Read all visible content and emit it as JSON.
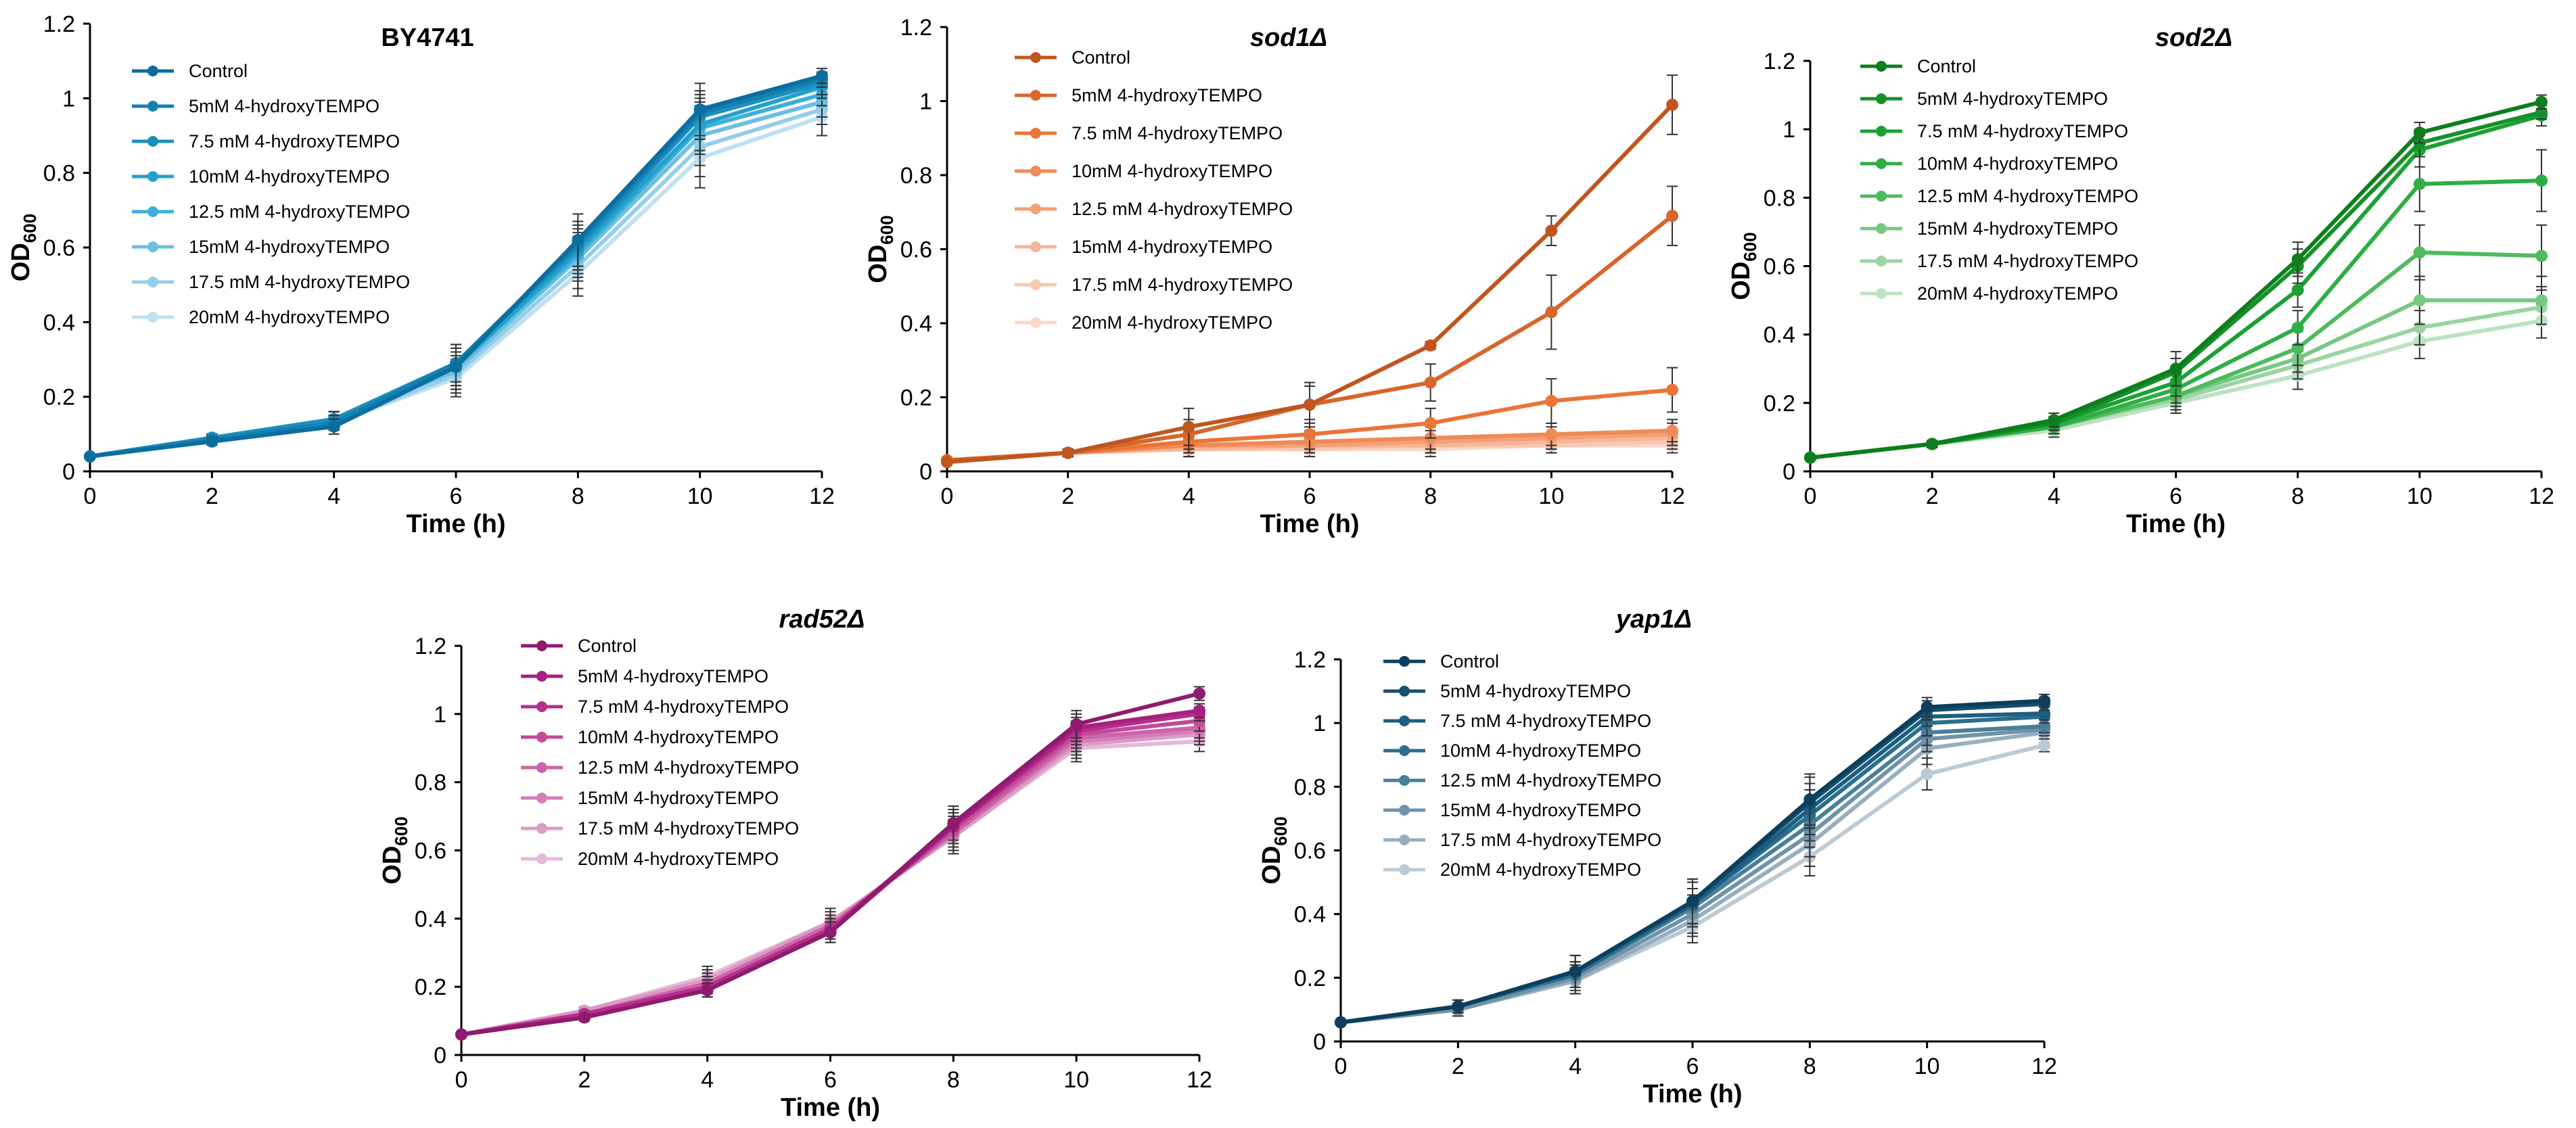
{
  "chart_data": [
    {
      "type": "line",
      "title": "BY4741",
      "title_italic": false,
      "xlabel": "Time (h)",
      "ylabel": "OD",
      "ylabel_sub": "600",
      "x": [
        0,
        2,
        4,
        6,
        8,
        10,
        12
      ],
      "xlim": [
        0,
        12
      ],
      "ylim": [
        0,
        1.2
      ],
      "yticks": [
        "0",
        "0.2",
        "0.4",
        "0.6",
        "0.8",
        "1",
        "1.2"
      ],
      "xticks": [
        "0",
        "2",
        "4",
        "6",
        "8",
        "10",
        "12"
      ],
      "legend_position": "top-left",
      "series": [
        {
          "name": "Control",
          "color": "#0B6E9E",
          "values": [
            0.04,
            0.08,
            0.12,
            0.28,
            0.62,
            0.97,
            1.06
          ],
          "err": [
            0.005,
            0.01,
            0.02,
            0.06,
            0.07,
            0.07,
            0.02
          ]
        },
        {
          "name": "5mM 4-hydroxyTEMPO",
          "color": "#1380B0",
          "values": [
            0.04,
            0.085,
            0.13,
            0.29,
            0.61,
            0.96,
            1.05
          ],
          "err": [
            0.005,
            0.01,
            0.02,
            0.05,
            0.06,
            0.06,
            0.02
          ]
        },
        {
          "name": "7.5 mM 4-hydroxyTEMPO",
          "color": "#1B8FC0",
          "values": [
            0.04,
            0.09,
            0.14,
            0.29,
            0.6,
            0.95,
            1.04
          ],
          "err": [
            0.005,
            0.01,
            0.02,
            0.05,
            0.06,
            0.06,
            0.03
          ]
        },
        {
          "name": "10mM 4-hydroxyTEMPO",
          "color": "#22A0CC",
          "values": [
            0.04,
            0.09,
            0.14,
            0.28,
            0.59,
            0.93,
            1.03
          ],
          "err": [
            0.005,
            0.01,
            0.02,
            0.05,
            0.06,
            0.07,
            0.03
          ]
        },
        {
          "name": "12.5 mM 4-hydroxyTEMPO",
          "color": "#3DB0DA",
          "values": [
            0.04,
            0.09,
            0.14,
            0.28,
            0.58,
            0.92,
            1.01
          ],
          "err": [
            0.005,
            0.01,
            0.02,
            0.05,
            0.06,
            0.07,
            0.03
          ]
        },
        {
          "name": "15mM 4-hydroxyTEMPO",
          "color": "#6BBFE2",
          "values": [
            0.04,
            0.09,
            0.14,
            0.27,
            0.57,
            0.9,
            0.99
          ],
          "err": [
            0.005,
            0.01,
            0.02,
            0.05,
            0.06,
            0.08,
            0.04
          ]
        },
        {
          "name": "17.5 mM 4-hydroxyTEMPO",
          "color": "#94CFEA",
          "values": [
            0.04,
            0.09,
            0.13,
            0.26,
            0.55,
            0.87,
            0.97
          ],
          "err": [
            0.005,
            0.01,
            0.02,
            0.05,
            0.06,
            0.08,
            0.04
          ]
        },
        {
          "name": "20mM 4-hydroxyTEMPO",
          "color": "#BFE0F1",
          "values": [
            0.04,
            0.09,
            0.13,
            0.25,
            0.53,
            0.84,
            0.95
          ],
          "err": [
            0.005,
            0.01,
            0.02,
            0.05,
            0.06,
            0.08,
            0.05
          ]
        }
      ]
    },
    {
      "type": "line",
      "title": "sod1Δ",
      "title_italic": true,
      "xlabel": "Time (h)",
      "ylabel": "OD",
      "ylabel_sub": "600",
      "x": [
        0,
        2,
        4,
        6,
        8,
        10,
        12
      ],
      "xlim": [
        0,
        12
      ],
      "ylim": [
        0,
        1.2
      ],
      "yticks": [
        "0",
        "0.2",
        "0.4",
        "0.6",
        "0.8",
        "1",
        "1.2"
      ],
      "xticks": [
        "0",
        "2",
        "4",
        "6",
        "8",
        "10",
        "12"
      ],
      "legend_position": "top-left",
      "series": [
        {
          "name": "Control",
          "color": "#C0561E",
          "values": [
            0.025,
            0.05,
            0.12,
            0.18,
            0.34,
            0.65,
            0.99
          ],
          "err": [
            0.005,
            0.01,
            0.05,
            0.06,
            0.01,
            0.04,
            0.08
          ]
        },
        {
          "name": "5mM 4-hydroxyTEMPO",
          "color": "#D8652A",
          "values": [
            0.03,
            0.05,
            0.1,
            0.18,
            0.24,
            0.43,
            0.69
          ],
          "err": [
            0.005,
            0.01,
            0.04,
            0.05,
            0.05,
            0.1,
            0.08
          ]
        },
        {
          "name": "7.5 mM 4-hydroxyTEMPO",
          "color": "#EB7436",
          "values": [
            0.03,
            0.05,
            0.08,
            0.1,
            0.13,
            0.19,
            0.22
          ],
          "err": [
            0.005,
            0.01,
            0.03,
            0.04,
            0.04,
            0.06,
            0.06
          ]
        },
        {
          "name": "10mM 4-hydroxyTEMPO",
          "color": "#F08A54",
          "values": [
            0.03,
            0.05,
            0.07,
            0.08,
            0.09,
            0.1,
            0.11
          ],
          "err": [
            0.005,
            0.01,
            0.02,
            0.03,
            0.03,
            0.03,
            0.03
          ]
        },
        {
          "name": "12.5 mM 4-hydroxyTEMPO",
          "color": "#F3A078",
          "values": [
            0.03,
            0.05,
            0.07,
            0.07,
            0.08,
            0.09,
            0.1
          ],
          "err": [
            0.005,
            0.01,
            0.02,
            0.02,
            0.03,
            0.03,
            0.03
          ]
        },
        {
          "name": "15mM 4-hydroxyTEMPO",
          "color": "#F6B698",
          "values": [
            0.03,
            0.05,
            0.06,
            0.07,
            0.07,
            0.08,
            0.09
          ],
          "err": [
            0.005,
            0.01,
            0.02,
            0.02,
            0.02,
            0.02,
            0.02
          ]
        },
        {
          "name": "17.5 mM 4-hydroxyTEMPO",
          "color": "#F8C8B2",
          "values": [
            0.03,
            0.05,
            0.06,
            0.06,
            0.07,
            0.07,
            0.08
          ],
          "err": [
            0.005,
            0.01,
            0.02,
            0.02,
            0.02,
            0.02,
            0.02
          ]
        },
        {
          "name": "20mM 4-hydroxyTEMPO",
          "color": "#FAD8C8",
          "values": [
            0.03,
            0.05,
            0.06,
            0.06,
            0.06,
            0.07,
            0.07
          ],
          "err": [
            0.005,
            0.01,
            0.02,
            0.02,
            0.02,
            0.02,
            0.02
          ]
        }
      ]
    },
    {
      "type": "line",
      "title": "sod2Δ",
      "title_italic": true,
      "xlabel": "Time (h)",
      "ylabel": "OD",
      "ylabel_sub": "600",
      "x": [
        0,
        2,
        4,
        6,
        8,
        10,
        12
      ],
      "xlim": [
        0,
        12
      ],
      "ylim": [
        0,
        1.2
      ],
      "yticks": [
        "0",
        "0.2",
        "0.4",
        "0.6",
        "0.8",
        "1",
        "1.2"
      ],
      "xticks": [
        "0",
        "2",
        "4",
        "6",
        "8",
        "10",
        "12"
      ],
      "legend_position": "top-left",
      "series": [
        {
          "name": "Control",
          "color": "#0E7D1E",
          "values": [
            0.04,
            0.08,
            0.15,
            0.3,
            0.62,
            0.99,
            1.08
          ],
          "err": [
            0.005,
            0.01,
            0.02,
            0.05,
            0.05,
            0.03,
            0.02
          ]
        },
        {
          "name": "5mM 4-hydroxyTEMPO",
          "color": "#149128",
          "values": [
            0.04,
            0.08,
            0.14,
            0.29,
            0.6,
            0.96,
            1.05
          ],
          "err": [
            0.005,
            0.01,
            0.02,
            0.04,
            0.05,
            0.04,
            0.02
          ]
        },
        {
          "name": "7.5 mM 4-hydroxyTEMPO",
          "color": "#1BA133",
          "values": [
            0.04,
            0.08,
            0.14,
            0.26,
            0.53,
            0.94,
            1.04
          ],
          "err": [
            0.005,
            0.01,
            0.02,
            0.04,
            0.05,
            0.05,
            0.03
          ]
        },
        {
          "name": "10mM 4-hydroxyTEMPO",
          "color": "#2EAE44",
          "values": [
            0.04,
            0.08,
            0.13,
            0.24,
            0.42,
            0.84,
            0.85
          ],
          "err": [
            0.005,
            0.01,
            0.02,
            0.04,
            0.05,
            0.08,
            0.09
          ]
        },
        {
          "name": "12.5 mM 4-hydroxyTEMPO",
          "color": "#4FBA5E",
          "values": [
            0.04,
            0.08,
            0.13,
            0.22,
            0.36,
            0.64,
            0.63
          ],
          "err": [
            0.005,
            0.01,
            0.02,
            0.04,
            0.05,
            0.08,
            0.09
          ]
        },
        {
          "name": "15mM 4-hydroxyTEMPO",
          "color": "#77C881",
          "values": [
            0.04,
            0.08,
            0.13,
            0.22,
            0.33,
            0.5,
            0.5
          ],
          "err": [
            0.005,
            0.01,
            0.02,
            0.03,
            0.04,
            0.07,
            0.07
          ]
        },
        {
          "name": "17.5 mM 4-hydroxyTEMPO",
          "color": "#9AD4A2",
          "values": [
            0.04,
            0.08,
            0.13,
            0.21,
            0.31,
            0.42,
            0.48
          ],
          "err": [
            0.005,
            0.01,
            0.02,
            0.03,
            0.04,
            0.05,
            0.05
          ]
        },
        {
          "name": "20mM 4-hydroxyTEMPO",
          "color": "#BDE2C2",
          "values": [
            0.04,
            0.08,
            0.12,
            0.2,
            0.28,
            0.38,
            0.44
          ],
          "err": [
            0.005,
            0.01,
            0.02,
            0.03,
            0.04,
            0.05,
            0.05
          ]
        }
      ]
    },
    {
      "type": "line",
      "title": "rad52Δ",
      "title_italic": true,
      "xlabel": "Time (h)",
      "ylabel": "OD",
      "ylabel_sub": "600",
      "x": [
        0,
        2,
        4,
        6,
        8,
        10,
        12
      ],
      "xlim": [
        0,
        12
      ],
      "ylim": [
        0,
        1.2
      ],
      "yticks": [
        "0",
        "0.2",
        "0.4",
        "0.6",
        "0.8",
        "1",
        "1.2"
      ],
      "xticks": [
        "0",
        "2",
        "4",
        "6",
        "8",
        "10",
        "12"
      ],
      "legend_position": "top-left",
      "series": [
        {
          "name": "Control",
          "color": "#8E1B6E",
          "values": [
            0.06,
            0.11,
            0.19,
            0.36,
            0.68,
            0.97,
            1.06
          ],
          "err": [
            0.005,
            0.01,
            0.02,
            0.03,
            0.05,
            0.04,
            0.02
          ]
        },
        {
          "name": "5mM 4-hydroxyTEMPO",
          "color": "#A6207F",
          "values": [
            0.06,
            0.11,
            0.19,
            0.36,
            0.67,
            0.96,
            1.01
          ],
          "err": [
            0.005,
            0.01,
            0.02,
            0.03,
            0.05,
            0.04,
            0.02
          ]
        },
        {
          "name": "7.5 mM 4-hydroxyTEMPO",
          "color": "#B62F8C",
          "values": [
            0.06,
            0.12,
            0.2,
            0.37,
            0.67,
            0.95,
            1.0
          ],
          "err": [
            0.005,
            0.01,
            0.02,
            0.03,
            0.05,
            0.04,
            0.02
          ]
        },
        {
          "name": "10mM 4-hydroxyTEMPO",
          "color": "#C24A99",
          "values": [
            0.06,
            0.12,
            0.2,
            0.37,
            0.66,
            0.94,
            0.98
          ],
          "err": [
            0.005,
            0.01,
            0.02,
            0.03,
            0.05,
            0.04,
            0.03
          ]
        },
        {
          "name": "12.5 mM 4-hydroxyTEMPO",
          "color": "#CB64A8",
          "values": [
            0.06,
            0.12,
            0.21,
            0.38,
            0.65,
            0.93,
            0.96
          ],
          "err": [
            0.005,
            0.01,
            0.02,
            0.03,
            0.05,
            0.04,
            0.03
          ]
        },
        {
          "name": "15mM 4-hydroxyTEMPO",
          "color": "#D47EB7",
          "values": [
            0.06,
            0.12,
            0.21,
            0.38,
            0.65,
            0.92,
            0.95
          ],
          "err": [
            0.005,
            0.01,
            0.03,
            0.03,
            0.05,
            0.04,
            0.03
          ]
        },
        {
          "name": "17.5 mM 4-hydroxyTEMPO",
          "color": "#DC9AC7",
          "values": [
            0.06,
            0.13,
            0.22,
            0.39,
            0.64,
            0.91,
            0.94
          ],
          "err": [
            0.005,
            0.01,
            0.03,
            0.03,
            0.05,
            0.04,
            0.03
          ]
        },
        {
          "name": "20mM 4-hydroxyTEMPO",
          "color": "#E6B8D8",
          "values": [
            0.06,
            0.13,
            0.23,
            0.39,
            0.64,
            0.9,
            0.92
          ],
          "err": [
            0.005,
            0.01,
            0.03,
            0.04,
            0.05,
            0.04,
            0.03
          ]
        }
      ]
    },
    {
      "type": "line",
      "title": "yap1Δ",
      "title_italic": true,
      "xlabel": "Time (h)",
      "ylabel": "OD",
      "ylabel_sub": "600",
      "x": [
        0,
        2,
        4,
        6,
        8,
        10,
        12
      ],
      "xlim": [
        0,
        12
      ],
      "ylim": [
        0,
        1.2
      ],
      "yticks": [
        "0",
        "0.2",
        "0.4",
        "0.6",
        "0.8",
        "1",
        "1.2"
      ],
      "xticks": [
        "0",
        "2",
        "4",
        "6",
        "8",
        "10",
        "12"
      ],
      "legend_position": "top-left",
      "series": [
        {
          "name": "Control",
          "color": "#0D3F5C",
          "values": [
            0.06,
            0.11,
            0.22,
            0.44,
            0.76,
            1.05,
            1.07
          ],
          "err": [
            0.005,
            0.02,
            0.05,
            0.07,
            0.08,
            0.03,
            0.02
          ]
        },
        {
          "name": "5mM 4-hydroxyTEMPO",
          "color": "#14506F",
          "values": [
            0.06,
            0.11,
            0.22,
            0.44,
            0.75,
            1.04,
            1.06
          ],
          "err": [
            0.005,
            0.02,
            0.05,
            0.07,
            0.08,
            0.03,
            0.02
          ]
        },
        {
          "name": "7.5 mM 4-hydroxyTEMPO",
          "color": "#1C5F80",
          "values": [
            0.06,
            0.11,
            0.22,
            0.43,
            0.73,
            1.02,
            1.03
          ],
          "err": [
            0.005,
            0.02,
            0.05,
            0.07,
            0.08,
            0.03,
            0.02
          ]
        },
        {
          "name": "10mM 4-hydroxyTEMPO",
          "color": "#2A6F8E",
          "values": [
            0.06,
            0.11,
            0.21,
            0.43,
            0.71,
            1.0,
            1.02
          ],
          "err": [
            0.005,
            0.02,
            0.04,
            0.07,
            0.08,
            0.04,
            0.02
          ]
        },
        {
          "name": "12.5 mM 4-hydroxyTEMPO",
          "color": "#4A7F98",
          "values": [
            0.06,
            0.11,
            0.21,
            0.42,
            0.68,
            0.97,
            0.99
          ],
          "err": [
            0.005,
            0.02,
            0.04,
            0.06,
            0.07,
            0.04,
            0.02
          ]
        },
        {
          "name": "15mM 4-hydroxyTEMPO",
          "color": "#7093A8",
          "values": [
            0.06,
            0.1,
            0.2,
            0.4,
            0.65,
            0.95,
            0.98
          ],
          "err": [
            0.005,
            0.02,
            0.04,
            0.06,
            0.07,
            0.04,
            0.02
          ]
        },
        {
          "name": "17.5 mM 4-hydroxyTEMPO",
          "color": "#96AFC0",
          "values": [
            0.06,
            0.1,
            0.19,
            0.38,
            0.62,
            0.92,
            0.97
          ],
          "err": [
            0.005,
            0.02,
            0.04,
            0.05,
            0.07,
            0.05,
            0.02
          ]
        },
        {
          "name": "20mM 4-hydroxyTEMPO",
          "color": "#BCCAD5",
          "values": [
            0.06,
            0.1,
            0.19,
            0.36,
            0.58,
            0.84,
            0.93
          ],
          "err": [
            0.005,
            0.02,
            0.04,
            0.05,
            0.06,
            0.05,
            0.02
          ]
        }
      ]
    }
  ]
}
